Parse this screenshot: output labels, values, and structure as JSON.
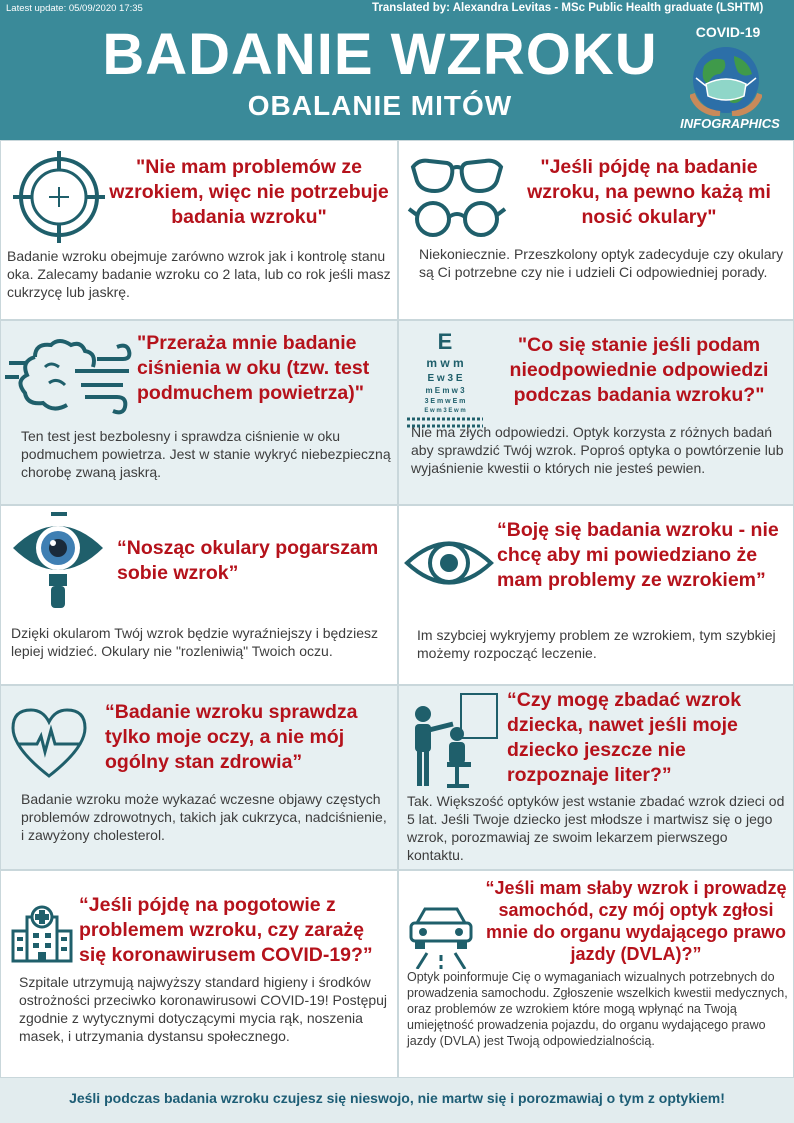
{
  "header": {
    "last_update": "Latest update: 05/09/2020 17:35",
    "translated_by": "Translated by: Alexandra Levitas - MSc Public Health graduate (LSHTM)",
    "title": "BADANIE WZROKU",
    "subtitle": "OBALANIE MITÓW",
    "covid_label": "COVID-19",
    "infographics_label": "INFOGRAPHICS"
  },
  "colors": {
    "header_bg": "#3a8a99",
    "heading_red": "#b5121b",
    "icon_teal": "#1f5f6b",
    "tint_bg": "#e7f0f2",
    "footer_text": "#1d5d75"
  },
  "myths": [
    {
      "icon": "target-icon",
      "heading": "\"Nie mam problemów ze wzrokiem, więc nie potrzebuje badania wzroku\"",
      "body": "Badanie wzroku obejmuje zarówno wzrok jak i kontrolę stanu oka. Zalecamy badanie wzroku co 2 lata, lub co rok jeśli masz cukrzycę lub jaskrę."
    },
    {
      "icon": "glasses-icon",
      "heading": "\"Jeśli pójdę na badanie wzroku, na pewno każą mi nosić okulary\"",
      "body": "Niekoniecznie. Przeszkolony optyk zadecyduje czy okulary są Ci potrzebne czy nie i udzieli Ci odpowiedniej porady."
    },
    {
      "icon": "air-puff-icon",
      "heading": "\"Przeraża mnie badanie ciśnienia w oku (tzw. test podmuchem powietrza)\"",
      "body": "Ten test jest bezbolesny i sprawdza ciśnienie w oku podmuchem powietrza. Jest w stanie wykryć niebezpieczną chorobę zwaną jaskrą."
    },
    {
      "icon": "eye-chart-icon",
      "heading": "\"Co się stanie jeśli podam nieodpowiednie odpowiedzi podczas badania wzroku?\"",
      "body": "Nie ma złych odpowiedzi. Optyk korzysta z różnych badań aby sprawdzić Twój wzrok. Poproś optyka o powtórzenie lub wyjaśnienie kwestii o których nie jesteś pewien."
    },
    {
      "icon": "magnified-eye-icon",
      "heading": "“Nosząc okulary pogarszam sobie wzrok”",
      "body": "Dzięki okularom Twój wzrok będzie wyraźniejszy i będziesz lepiej widzieć. Okulary nie \"rozleniwią\" Twoich oczu."
    },
    {
      "icon": "eye-icon",
      "heading": "“Boję się badania wzroku - nie chcę aby mi powiedziano że mam problemy ze wzrokiem”",
      "body": "Im szybciej wykryjemy problem ze wzrokiem, tym szybkiej możemy rozpocząć leczenie."
    },
    {
      "icon": "heart-pulse-icon",
      "heading": "“Badanie wzroku sprawdza tylko moje oczy, a nie mój ogólny stan zdrowia”",
      "body": "Badanie wzroku może wykazać wczesne objawy częstych problemów zdrowotnych, takich jak cukrzyca, nadciśnienie, i zawyżony cholesterol."
    },
    {
      "icon": "child-eye-test-icon",
      "heading": "“Czy mogę zbadać wzrok dziecka, nawet jeśli moje dziecko jeszcze nie rozpoznaje liter?”",
      "body": "Tak. Większość optyków jest wstanie zbadać wzrok dzieci od 5 lat. Jeśli Twoje dziecko jest młodsze i martwisz się o jego wzrok, porozmawiaj ze swoim lekarzem pierwszego kontaktu."
    },
    {
      "icon": "hospital-icon",
      "heading": "“Jeśli pójdę na pogotowie z problemem wzroku, czy zarażę się koronawirusem COVID-19?”",
      "body": "Szpitale utrzymują najwyższy standard higieny i środków ostrożności przeciwko koronawirusowi COVID-19! Postępuj zgodnie z wytycznymi dotyczącymi mycia rąk, noszenia masek, i utrzymania dystansu społecznego."
    },
    {
      "icon": "car-icon",
      "heading": "“Jeśli mam słaby wzrok i prowadzę samochód, czy mój optyk zgłosi mnie do organu wydającego prawo jazdy (DVLA)?”",
      "body": "Optyk poinformuje Cię o wymaganiach wizualnych potrzebnych do prowadzenia samochodu. Zgłoszenie wszelkich kwestii medycznych, oraz problemów ze wzrokiem które mogą wpłynąć na Twoją umiejętność prowadzenia pojazdu, do organu wydającego prawo jazdy (DVLA) jest Twoją odpowiedzialnością."
    }
  ],
  "footer": {
    "text": "Jeśli podczas badania wzroku czujesz się nieswojo, nie martw się i porozmawiaj o tym z optykiem!"
  }
}
